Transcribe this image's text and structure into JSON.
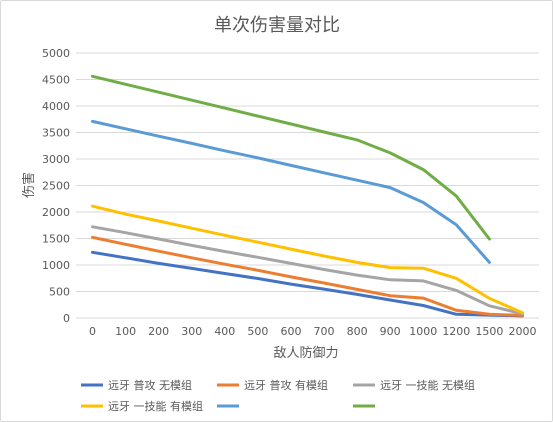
{
  "chart_data": {
    "type": "line",
    "title": "单次伤害量对比",
    "xlabel": "敌人防御力",
    "ylabel": "伤害",
    "categories": [
      "0",
      "100",
      "200",
      "300",
      "400",
      "500",
      "600",
      "700",
      "800",
      "900",
      "1000",
      "1200",
      "1500",
      "2000"
    ],
    "ylim": [
      0,
      5000
    ],
    "yticks": [
      0,
      500,
      1000,
      1500,
      2000,
      2500,
      3000,
      3500,
      4000,
      4500,
      5000
    ],
    "grid": true,
    "legend": "bottom",
    "series": [
      {
        "name": "远牙 普攻 无模组",
        "color": "#4472C4",
        "values": [
          1240,
          1135,
          1030,
          935,
          840,
          745,
          640,
          545,
          445,
          340,
          235,
          70,
          55,
          40
        ]
      },
      {
        "name": "远牙 普攻 有模组",
        "color": "#ED7D31",
        "values": [
          1520,
          1390,
          1260,
          1135,
          1015,
          900,
          775,
          660,
          540,
          420,
          375,
          145,
          70,
          50
        ]
      },
      {
        "name": "远牙 一技能 无模组",
        "color": "#A5A5A5",
        "values": [
          1720,
          1610,
          1490,
          1370,
          1255,
          1145,
          1030,
          915,
          810,
          720,
          700,
          520,
          230,
          80
        ]
      },
      {
        "name": "远牙 一技能 有模组",
        "color": "#FFC000",
        "values": [
          2110,
          1960,
          1830,
          1695,
          1560,
          1430,
          1300,
          1170,
          1050,
          950,
          940,
          750,
          370,
          100
        ]
      },
      {
        "name": "",
        "color": "#5B9BD5",
        "values": [
          3710,
          3570,
          3430,
          3295,
          3155,
          3020,
          2880,
          2740,
          2600,
          2460,
          2180,
          1760,
          1050,
          null
        ]
      },
      {
        "name": "",
        "color": "#70AD47",
        "values": [
          4560,
          4410,
          4260,
          4110,
          3960,
          3810,
          3660,
          3510,
          3360,
          3115,
          2800,
          2300,
          1490,
          null
        ]
      }
    ]
  }
}
